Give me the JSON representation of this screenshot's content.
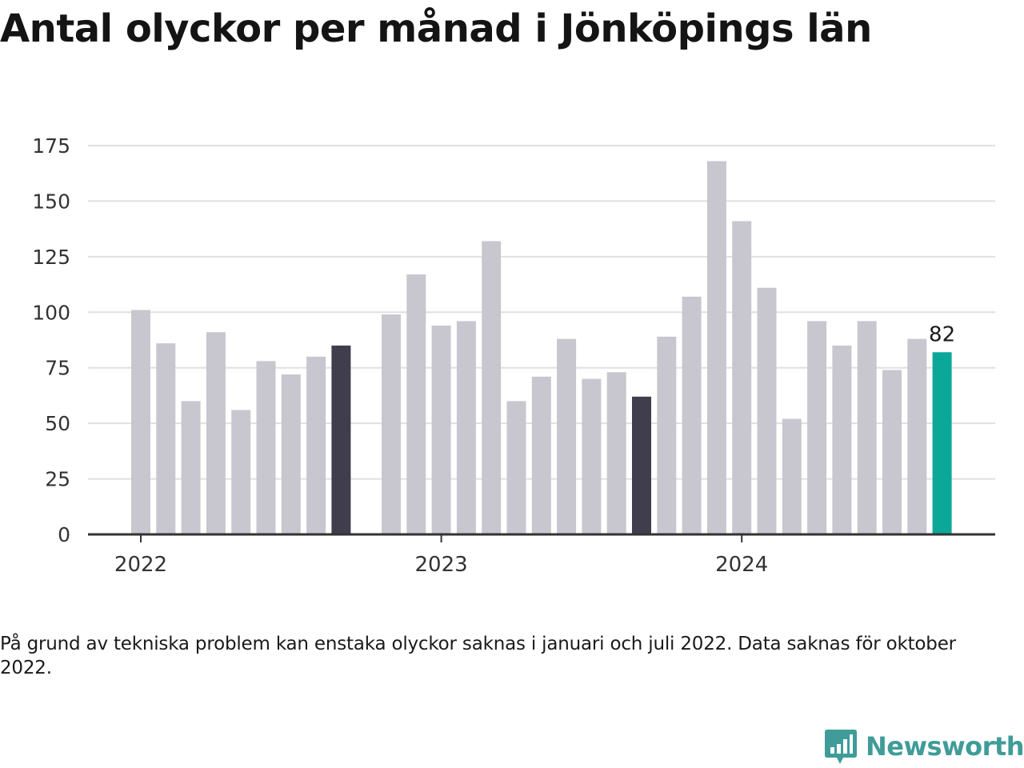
{
  "title": "Antal olyckor per månad i Jönköpings län",
  "footnote": "På grund av tekniska problem kan enstaka olyckor saknas i januari och juli 2022. Data saknas för oktober 2022.",
  "brand": {
    "name": "Newsworthy",
    "icon": "chart-speech-bubble-icon"
  },
  "colors": {
    "bar": "#c8c7cf",
    "highlight": "#403e4c",
    "latest": "#0ba89a",
    "grid": "#e0e0e0",
    "axis": "#333333"
  },
  "chart_data": {
    "type": "bar",
    "title": "Antal olyckor per månad i Jönköpings län",
    "ylim": [
      0,
      175
    ],
    "yticks": [
      0,
      25,
      50,
      75,
      100,
      125,
      150,
      175
    ],
    "xticks": [
      "2022",
      "2023",
      "2024"
    ],
    "grid": true,
    "categories": [
      "2022-01",
      "2022-02",
      "2022-03",
      "2022-04",
      "2022-05",
      "2022-06",
      "2022-07",
      "2022-08",
      "2022-09",
      "2022-10",
      "2022-11",
      "2022-12",
      "2023-01",
      "2023-02",
      "2023-03",
      "2023-04",
      "2023-05",
      "2023-06",
      "2023-07",
      "2023-08",
      "2023-09",
      "2023-10",
      "2023-11",
      "2023-12",
      "2024-01",
      "2024-02",
      "2024-03",
      "2024-04",
      "2024-05",
      "2024-06",
      "2024-07",
      "2024-08",
      "2024-09"
    ],
    "values": [
      101,
      86,
      60,
      91,
      56,
      78,
      72,
      80,
      85,
      null,
      99,
      117,
      94,
      96,
      132,
      60,
      71,
      88,
      70,
      73,
      62,
      89,
      107,
      168,
      141,
      111,
      52,
      96,
      85,
      96,
      74,
      88,
      82
    ],
    "highlighted": [
      "2022-09",
      "2023-09"
    ],
    "latest": "2024-09",
    "labels": [
      {
        "category": "2024-09",
        "text": "82"
      }
    ]
  }
}
